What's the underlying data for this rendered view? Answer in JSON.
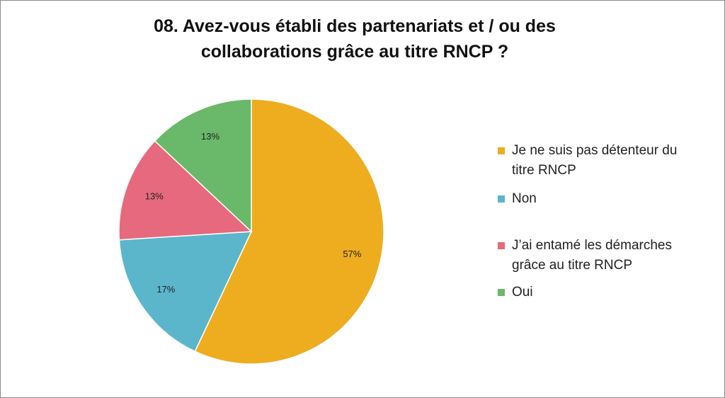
{
  "chart_data": {
    "type": "pie",
    "title_lines": [
      "08. Avez-vous établi des partenariats et / ou des",
      "collaborations grâce au titre RNCP ?"
    ],
    "slices": [
      {
        "label_lines": [
          "Je ne suis pas détenteur du",
          "titre RNCP"
        ],
        "value": 57,
        "value_label": "57%",
        "color": "#EDAD1F"
      },
      {
        "label_lines": [
          "Non"
        ],
        "value": 17,
        "value_label": "17%",
        "color": "#5BB6CC"
      },
      {
        "label_lines": [
          "J’ai entamé les démarches",
          "grâce au titre RNCP"
        ],
        "value": 13,
        "value_label": "13%",
        "color": "#E6697D"
      },
      {
        "label_lines": [
          "Oui"
        ],
        "value": 13,
        "value_label": "13%",
        "color": "#6AB86A"
      }
    ],
    "legend_position": "right"
  }
}
